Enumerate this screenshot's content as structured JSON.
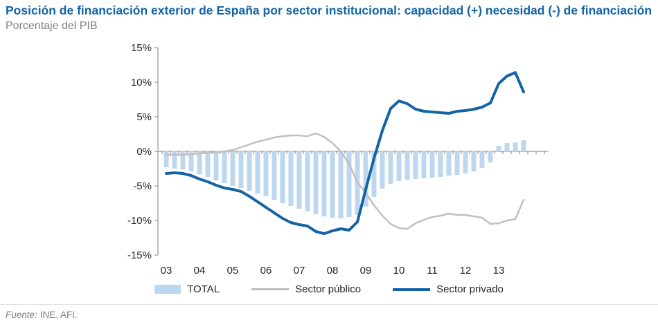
{
  "header": {
    "title": "Posición de financiación exterior de España por sector institucional: capacidad (+) necesidad (-) de financiación",
    "subtitle": "Porcentaje del PIB"
  },
  "legend": {
    "items": [
      {
        "label": "TOTAL",
        "swatch": "bar"
      },
      {
        "label": "Sector público",
        "swatch": "line"
      },
      {
        "label": "Sector privado",
        "swatch": "thick-line"
      }
    ]
  },
  "footer": {
    "source_prefix": "Fuente:",
    "source_text": "INE, AFI."
  },
  "colors": {
    "title_blue": "#1464A5",
    "subtitle_gray": "#7F7F7F",
    "bar_fill": "#BDD7EE",
    "public_line": "#BFBFBF",
    "private_line": "#1464A5",
    "axis": "#808080",
    "axis_text": "#262626"
  },
  "chart_data": {
    "type": "bar+line",
    "title": "Posición de financiación exterior de España por sector institucional: capacidad (+) necesidad (-) de financiación",
    "subtitle": "Porcentaje del PIB",
    "y_unit": "%",
    "ylim": [
      -15,
      15
    ],
    "y_ticks": [
      15,
      10,
      5,
      0,
      -5,
      -10,
      -15
    ],
    "grid": false,
    "legend_position": "bottom",
    "x_tick_labels": [
      "03",
      "04",
      "05",
      "06",
      "07",
      "08",
      "09",
      "10",
      "11",
      "12",
      "13"
    ],
    "x": [
      "2003Q1",
      "2003Q2",
      "2003Q3",
      "2003Q4",
      "2004Q1",
      "2004Q2",
      "2004Q3",
      "2004Q4",
      "2005Q1",
      "2005Q2",
      "2005Q3",
      "2005Q4",
      "2006Q1",
      "2006Q2",
      "2006Q3",
      "2006Q4",
      "2007Q1",
      "2007Q2",
      "2007Q3",
      "2007Q4",
      "2008Q1",
      "2008Q2",
      "2008Q3",
      "2008Q4",
      "2009Q1",
      "2009Q2",
      "2009Q3",
      "2009Q4",
      "2010Q1",
      "2010Q2",
      "2010Q3",
      "2010Q4",
      "2011Q1",
      "2011Q2",
      "2011Q3",
      "2011Q4",
      "2012Q1",
      "2012Q2",
      "2012Q3",
      "2012Q4",
      "2013Q1",
      "2013Q2",
      "2013Q3",
      "2013Q4"
    ],
    "series": [
      {
        "name": "TOTAL",
        "type": "bar",
        "color": "#BDD7EE",
        "values": [
          -2.3,
          -2.5,
          -2.6,
          -2.9,
          -3.3,
          -3.7,
          -4.2,
          -4.6,
          -5.0,
          -5.3,
          -5.7,
          -6.1,
          -6.5,
          -7.0,
          -7.5,
          -7.9,
          -8.3,
          -8.7,
          -9.1,
          -9.4,
          -9.6,
          -9.7,
          -9.5,
          -9.2,
          -8.0,
          -6.6,
          -5.4,
          -4.7,
          -4.3,
          -4.1,
          -4.0,
          -3.9,
          -3.8,
          -3.7,
          -3.5,
          -3.4,
          -3.2,
          -2.9,
          -2.4,
          -1.6,
          0.8,
          1.2,
          1.3,
          1.6
        ]
      },
      {
        "name": "Sector público",
        "type": "line",
        "color": "#BFBFBF",
        "stroke_width": 2.5,
        "values": [
          -0.5,
          -0.5,
          -0.5,
          -0.4,
          -0.3,
          -0.2,
          -0.1,
          0.0,
          0.2,
          0.6,
          1.0,
          1.4,
          1.7,
          2.0,
          2.2,
          2.3,
          2.3,
          2.2,
          2.6,
          2.1,
          1.2,
          0.0,
          -1.8,
          -4.5,
          -6.0,
          -7.8,
          -9.3,
          -10.5,
          -11.1,
          -11.2,
          -10.4,
          -9.9,
          -9.5,
          -9.3,
          -9.0,
          -9.2,
          -9.2,
          -9.4,
          -9.6,
          -10.5,
          -10.4,
          -10.0,
          -9.8,
          -7.0
        ]
      },
      {
        "name": "Sector privado",
        "type": "line",
        "color": "#1464A5",
        "stroke_width": 4,
        "values": [
          -3.2,
          -3.1,
          -3.2,
          -3.5,
          -4.0,
          -4.4,
          -4.9,
          -5.3,
          -5.5,
          -5.8,
          -6.5,
          -7.3,
          -8.1,
          -8.9,
          -9.7,
          -10.3,
          -10.6,
          -10.8,
          -11.6,
          -11.9,
          -11.5,
          -11.2,
          -11.4,
          -10.2,
          -5.5,
          -1.0,
          3.0,
          6.2,
          7.3,
          6.9,
          6.1,
          5.8,
          5.7,
          5.6,
          5.5,
          5.8,
          5.9,
          6.1,
          6.4,
          7.0,
          9.8,
          10.9,
          11.4,
          8.6
        ]
      }
    ]
  }
}
